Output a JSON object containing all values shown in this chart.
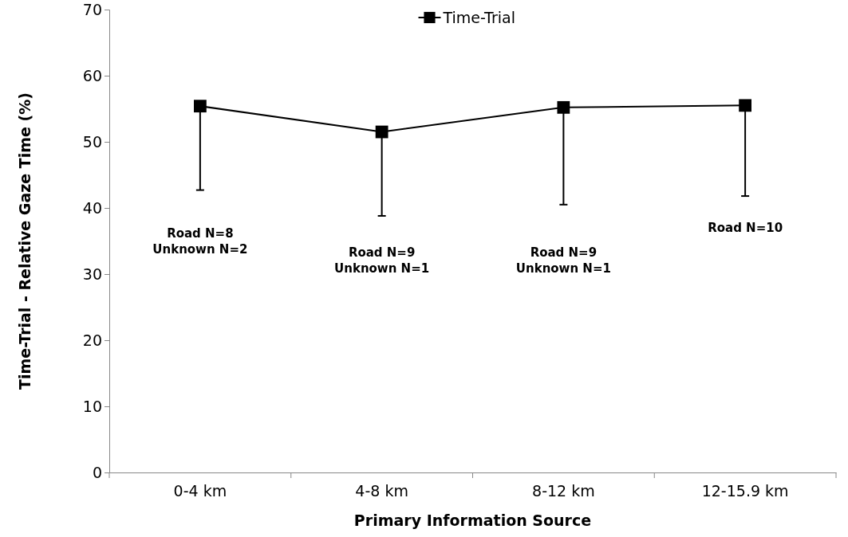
{
  "chart_data": {
    "type": "line",
    "xlabel": "Primary Information Source",
    "ylabel": "Time-Trial - Relative Gaze Time (%)",
    "categories": [
      "0-4 km",
      "4-8 km",
      "8-12 km",
      "12-15.9 km"
    ],
    "series": [
      {
        "name": "Time-Trial",
        "color": "#000000",
        "values": [
          55.4,
          51.5,
          55.2,
          55.5
        ],
        "errors": [
          [
            42.7,
            55.4
          ],
          [
            38.8,
            51.5
          ],
          [
            40.5,
            55.2
          ],
          [
            41.8,
            55.5
          ]
        ]
      }
    ],
    "ylim": [
      0,
      70
    ],
    "yticks": [
      0,
      10,
      20,
      30,
      40,
      50,
      60,
      70
    ],
    "marker": "square",
    "legend": "top",
    "grid": false,
    "annotations": [
      "Road N=8\nUnknown N=2",
      "Road N=9\nUnknown N=1",
      "Road N=9\nUnknown N=1",
      "Road N=10"
    ]
  }
}
